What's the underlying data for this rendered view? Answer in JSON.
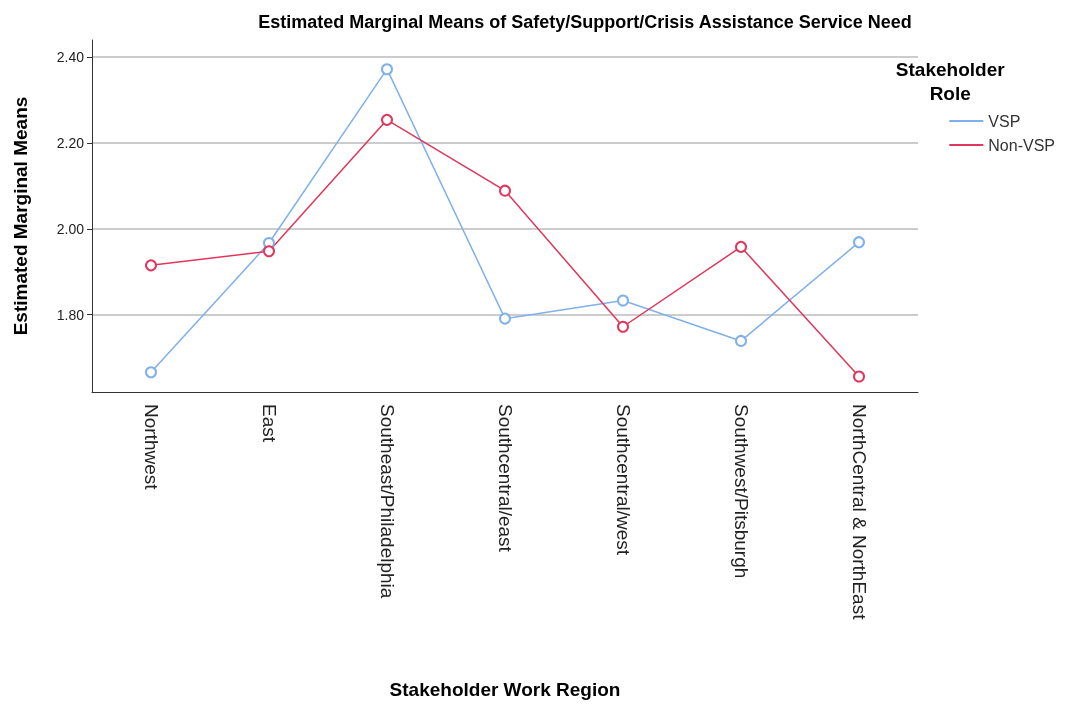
{
  "chart_data": {
    "type": "line",
    "title": "Estimated Marginal Means of Safety/Support/Crisis Assistance Service Need",
    "xlabel": "Stakeholder Work Region",
    "ylabel": "Estimated Marginal Means",
    "legend_title": "Stakeholder Role",
    "categories": [
      "Northwest",
      "East",
      "Southeast/Philadelphia",
      "Southcentral/east",
      "Southcentral/west",
      "Southwest/Pitsburgh",
      "NorthCentral & NorthEast"
    ],
    "series": [
      {
        "name": "VSP",
        "color": "#7fb0ec",
        "values": [
          1.666,
          1.967,
          2.372,
          1.791,
          1.833,
          1.739,
          1.969
        ]
      },
      {
        "name": "Non-VSP",
        "color": "#e0365c",
        "values": [
          1.915,
          1.948,
          2.254,
          2.089,
          1.772,
          1.958,
          1.656
        ]
      }
    ],
    "ylim": [
      1.62,
      2.44
    ],
    "yticks": [
      {
        "value": 1.8,
        "label": "1.80"
      },
      {
        "value": 2.0,
        "label": "2.00"
      },
      {
        "value": 2.2,
        "label": "2.20"
      },
      {
        "value": 2.4,
        "label": "2.40"
      }
    ],
    "grid": "y",
    "legend": "top right",
    "marker": "circle",
    "line_style": "solid"
  }
}
